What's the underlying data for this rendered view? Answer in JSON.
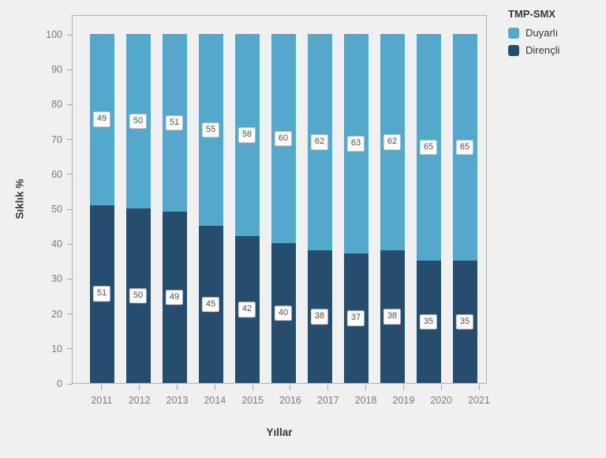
{
  "background_color": "#f0f0f1",
  "plot_border_color": "#b3b3b3",
  "legend": {
    "title": "TMP-SMX",
    "items": [
      {
        "label": "Duyarlı",
        "color": "#54a8cb"
      },
      {
        "label": "Dirençli",
        "color": "#274d6e"
      }
    ]
  },
  "chart_data": {
    "type": "bar",
    "stacked": true,
    "title": "",
    "xlabel": "Yıllar",
    "ylabel": "Sıklık %",
    "ylim": [
      0,
      100
    ],
    "yticks": [
      0,
      10,
      20,
      30,
      40,
      50,
      60,
      70,
      80,
      90,
      100
    ],
    "categories": [
      "2011",
      "2012",
      "2013",
      "2014",
      "2015",
      "2016",
      "2017",
      "2018",
      "2019",
      "2020",
      "2021"
    ],
    "series": [
      {
        "name": "Duyarlı",
        "color": "#54a8cb",
        "values": [
          49,
          50,
          51,
          55,
          58,
          60,
          62,
          63,
          62,
          65,
          65
        ]
      },
      {
        "name": "Dirençli",
        "color": "#274d6e",
        "values": [
          51,
          50,
          49,
          45,
          42,
          40,
          38,
          37,
          38,
          35,
          35
        ]
      }
    ],
    "bar_value_labels": true,
    "grid": false,
    "legend_position": "top-right"
  }
}
